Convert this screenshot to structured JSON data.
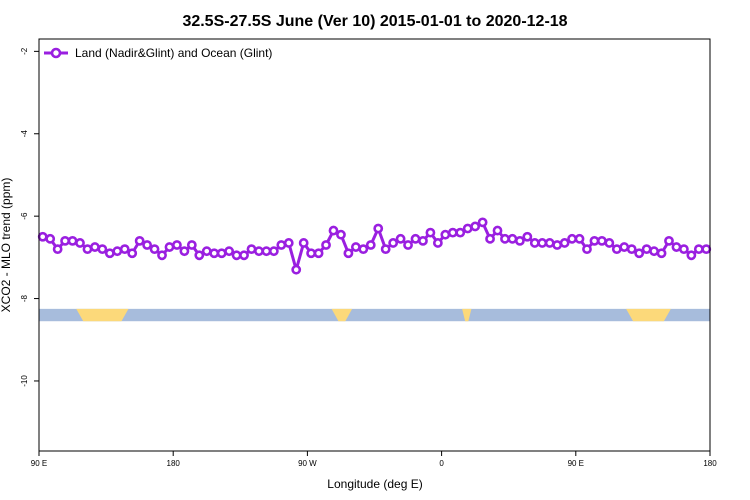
{
  "chart_data": {
    "type": "line",
    "title": "32.5S-27.5S June (Ver 10)   2015-01-01 to 2020-12-18",
    "xlabel": "Longitude (deg E)",
    "ylabel": "XCO2 - MLO trend (ppm)",
    "xlim": [
      90,
      450
    ],
    "ylim": [
      -11.7,
      -1.7
    ],
    "x_ticks": [
      {
        "value": 90,
        "label": "90 E"
      },
      {
        "value": 162,
        "label": "180"
      },
      {
        "value": 234,
        "label": "90 W"
      },
      {
        "value": 306,
        "label": "0"
      },
      {
        "value": 378,
        "label": "90 E"
      },
      {
        "value": 450,
        "label": "180"
      }
    ],
    "y_ticks": [
      {
        "value": -2,
        "label": "-2"
      },
      {
        "value": -4,
        "label": "-4"
      },
      {
        "value": -6,
        "label": "-6"
      },
      {
        "value": -8,
        "label": "-8"
      },
      {
        "value": -10,
        "label": "-10"
      }
    ],
    "grid": false,
    "legend": {
      "position": "top-left",
      "entries": [
        "Land (Nadir&Glint) and Ocean (Glint)"
      ]
    },
    "colors": {
      "series": "#9a1fe0",
      "ocean": "#a7bcdc",
      "land": "#fcd97a"
    },
    "surface_band": {
      "y_top": -8.25,
      "y_bottom": -8.55,
      "land_segments": [
        [
          110,
          138
        ],
        [
          247,
          258
        ],
        [
          317,
          322
        ],
        [
          405,
          429
        ]
      ]
    },
    "series": [
      {
        "name": "Land (Nadir&Glint) and Ocean (Glint)",
        "x": [
          92,
          96,
          100,
          104,
          108,
          112,
          116,
          120,
          124,
          128,
          132,
          136,
          140,
          144,
          148,
          152,
          156,
          160,
          164,
          168,
          172,
          176,
          180,
          184,
          188,
          192,
          196,
          200,
          204,
          208,
          212,
          216,
          220,
          224,
          228,
          232,
          236,
          240,
          244,
          248,
          252,
          256,
          260,
          264,
          268,
          272,
          276,
          280,
          284,
          288,
          292,
          296,
          300,
          304,
          308,
          312,
          316,
          320,
          324,
          328,
          332,
          336,
          340,
          344,
          348,
          352,
          356,
          360,
          364,
          368,
          372,
          376,
          380,
          384,
          388,
          392,
          396,
          400,
          404,
          408,
          412,
          416,
          420,
          424,
          428,
          432,
          436,
          440,
          444,
          448
        ],
        "y": [
          -6.5,
          -6.55,
          -6.8,
          -6.6,
          -6.6,
          -6.65,
          -6.8,
          -6.75,
          -6.8,
          -6.9,
          -6.85,
          -6.8,
          -6.9,
          -6.6,
          -6.7,
          -6.8,
          -6.95,
          -6.75,
          -6.7,
          -6.85,
          -6.7,
          -6.95,
          -6.85,
          -6.9,
          -6.9,
          -6.85,
          -6.95,
          -6.95,
          -6.8,
          -6.85,
          -6.85,
          -6.85,
          -6.7,
          -6.65,
          -7.3,
          -6.65,
          -6.9,
          -6.9,
          -6.7,
          -6.35,
          -6.45,
          -6.9,
          -6.75,
          -6.8,
          -6.7,
          -6.3,
          -6.8,
          -6.65,
          -6.55,
          -6.7,
          -6.55,
          -6.6,
          -6.4,
          -6.65,
          -6.45,
          -6.4,
          -6.4,
          -6.3,
          -6.25,
          -6.15,
          -6.55,
          -6.35,
          -6.55,
          -6.55,
          -6.6,
          -6.5,
          -6.65,
          -6.65,
          -6.65,
          -6.7,
          -6.65,
          -6.55,
          -6.55,
          -6.8,
          -6.6,
          -6.6,
          -6.65,
          -6.8,
          -6.75,
          -6.8,
          -6.9,
          -6.8,
          -6.85,
          -6.9,
          -6.6,
          -6.75,
          -6.8,
          -6.95,
          -6.8,
          -6.8
        ]
      }
    ]
  }
}
